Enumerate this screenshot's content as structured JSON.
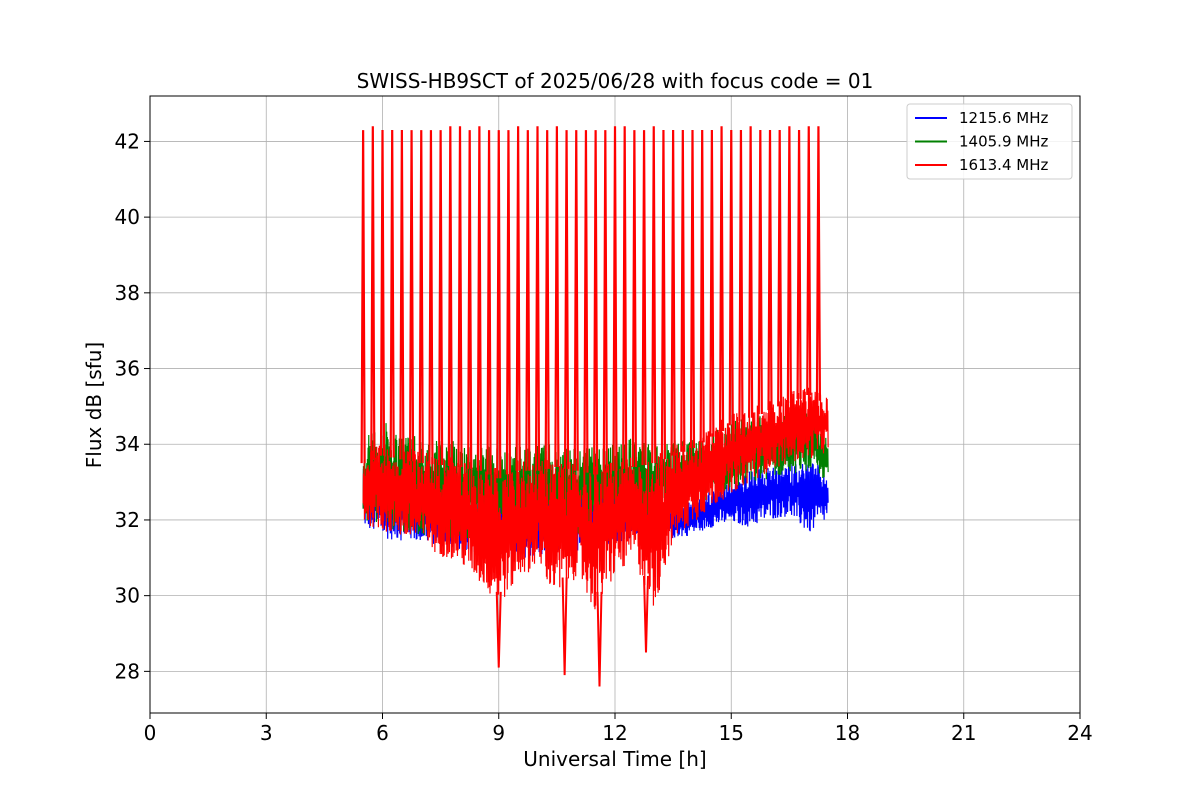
{
  "chart_data": {
    "type": "line",
    "title": "SWISS-HB9SCT of 2025/06/28 with focus code = 01",
    "xlabel": "Universal Time [h]",
    "ylabel": "Flux dB [sfu]",
    "xlim": [
      0,
      24
    ],
    "ylim": [
      26.9,
      43.2
    ],
    "xticks": [
      "0",
      "3",
      "6",
      "9",
      "12",
      "15",
      "18",
      "21",
      "24"
    ],
    "yticks": [
      "28",
      "30",
      "32",
      "34",
      "36",
      "38",
      "40",
      "42"
    ],
    "grid": true,
    "legend_position": "top-right",
    "series": [
      {
        "name": "1215.6 MHz",
        "color": "#0000ff",
        "x": [
          5.5,
          6,
          7,
          8,
          9,
          10,
          11,
          11.5,
          12,
          12.5,
          13,
          13.5,
          14,
          14.5,
          15,
          15.5,
          16,
          16.5,
          17,
          17.5
        ],
        "low": [
          31.8,
          31.5,
          31.4,
          31.2,
          31.0,
          31.0,
          31.1,
          31.2,
          31.4,
          31.5,
          31.6,
          31.5,
          31.6,
          31.8,
          31.9,
          31.8,
          32.0,
          32.1,
          31.6,
          32.0
        ],
        "high": [
          33.6,
          33.4,
          33.0,
          32.9,
          32.7,
          32.8,
          32.9,
          33.0,
          32.8,
          32.6,
          32.5,
          32.4,
          32.6,
          32.8,
          33.0,
          33.3,
          33.4,
          33.5,
          33.6,
          33.3
        ]
      },
      {
        "name": "1405.9 MHz",
        "color": "#008000",
        "x": [
          5.5,
          6,
          7,
          8,
          9,
          10,
          11,
          11.5,
          12,
          12.5,
          13,
          13.5,
          14,
          14.5,
          15,
          15.5,
          16,
          16.5,
          17,
          17.5
        ],
        "low": [
          32.0,
          31.8,
          31.6,
          31.5,
          31.4,
          31.5,
          31.6,
          31.8,
          31.9,
          32.0,
          32.1,
          32.2,
          32.4,
          32.6,
          32.8,
          32.9,
          33.1,
          33.2,
          33.3,
          33.0
        ],
        "high": [
          34.2,
          34.6,
          34.2,
          34.1,
          33.9,
          34.0,
          34.0,
          33.9,
          34.0,
          34.2,
          34.0,
          34.1,
          34.2,
          34.4,
          34.6,
          34.8,
          34.8,
          34.9,
          34.9,
          34.2
        ]
      },
      {
        "name": "1613.4 MHz",
        "color": "#ff0000",
        "x": [
          5.5,
          6,
          7,
          8,
          8.5,
          9,
          9.5,
          10,
          10.5,
          11,
          11.5,
          12,
          12.5,
          13,
          13.5,
          14,
          14.5,
          15,
          15.5,
          16,
          16.5,
          17,
          17.5
        ],
        "low": [
          31.9,
          31.7,
          31.3,
          30.8,
          30.3,
          29.7,
          30.4,
          30.8,
          29.8,
          30.5,
          29.5,
          30.5,
          30.9,
          29.6,
          31.4,
          31.9,
          32.3,
          32.7,
          33.0,
          33.3,
          33.5,
          33.6,
          33.8
        ],
        "high": [
          33.8,
          34.0,
          33.8,
          33.7,
          33.6,
          33.4,
          33.6,
          33.6,
          33.7,
          33.6,
          33.5,
          33.6,
          33.7,
          33.8,
          34.0,
          34.2,
          34.5,
          34.8,
          35.0,
          35.2,
          35.4,
          35.6,
          35.3
        ],
        "spikes_x": [
          5.5,
          5.75,
          6.0,
          6.25,
          6.5,
          6.75,
          7.0,
          7.25,
          7.5,
          7.75,
          8.0,
          8.25,
          8.5,
          8.75,
          9.0,
          9.25,
          9.5,
          9.75,
          10.0,
          10.25,
          10.5,
          10.75,
          11.0,
          11.25,
          11.5,
          11.75,
          12.0,
          12.25,
          12.5,
          12.75,
          13.0,
          13.25,
          13.5,
          13.75,
          14.0,
          14.25,
          14.5,
          14.75,
          15.0,
          15.25,
          15.5,
          15.75,
          16.0,
          16.25,
          16.5,
          16.75,
          17.0,
          17.25
        ],
        "spikes_y": [
          42.3,
          42.4,
          42.3,
          42.3,
          42.3,
          42.3,
          42.3,
          42.3,
          42.3,
          42.4,
          42.4,
          42.3,
          42.4,
          42.3,
          42.3,
          42.3,
          42.4,
          42.3,
          42.4,
          42.3,
          42.4,
          42.3,
          42.3,
          42.3,
          42.3,
          42.3,
          42.4,
          42.4,
          42.3,
          42.3,
          42.4,
          42.3,
          42.3,
          42.3,
          42.3,
          42.3,
          42.3,
          42.4,
          42.3,
          42.3,
          42.4,
          42.3,
          42.3,
          42.3,
          42.4,
          42.3,
          42.4,
          42.4
        ],
        "dips_x": [
          9.0,
          10.7,
          11.6,
          12.8
        ],
        "dips_y": [
          28.1,
          27.9,
          27.6,
          28.5
        ]
      }
    ]
  }
}
